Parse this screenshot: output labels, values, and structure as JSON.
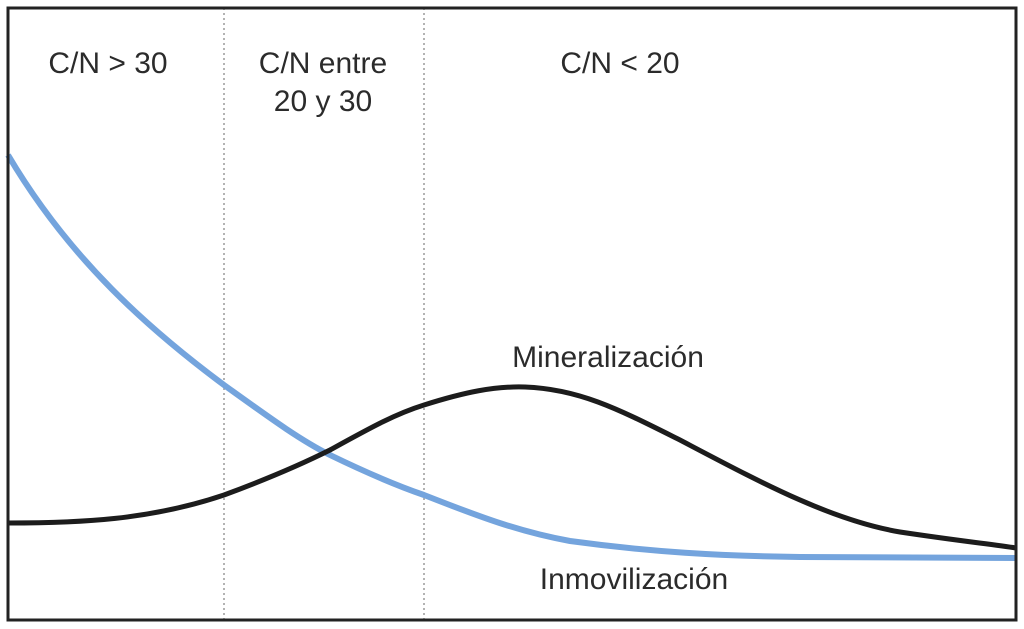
{
  "regions": [
    {
      "label_lines": [
        "C/N > 30"
      ]
    },
    {
      "label_lines": [
        "C/N entre",
        "20 y 30"
      ]
    },
    {
      "label_lines": [
        "C/N < 20"
      ]
    }
  ],
  "curves": [
    {
      "label": "Mineralización"
    },
    {
      "label": "Inmovilización"
    }
  ]
}
